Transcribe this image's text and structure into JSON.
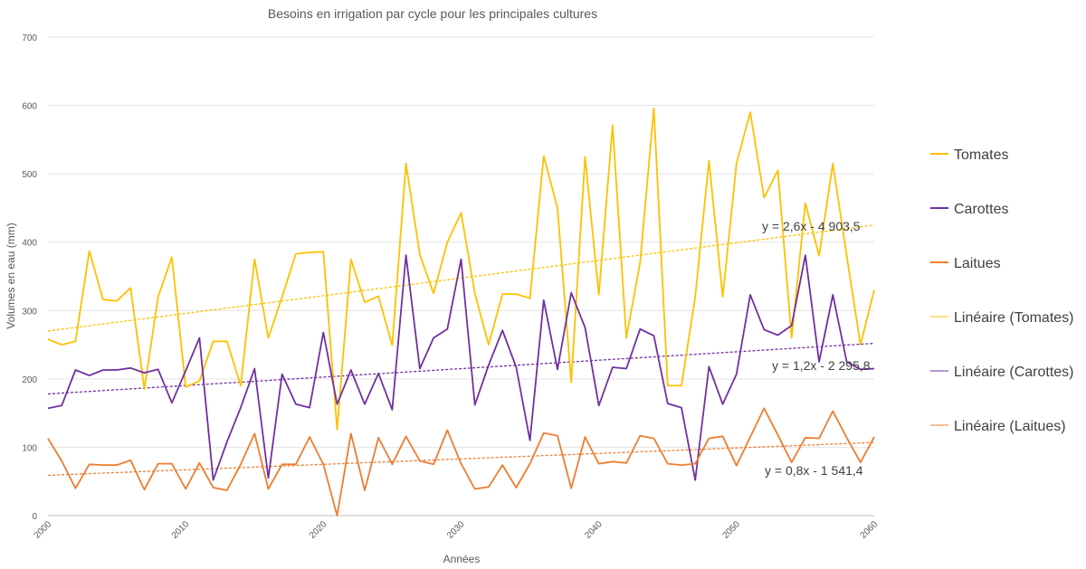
{
  "chart_data": {
    "type": "line",
    "title": "Besoins en irrigation par cycle pour les principales cultures",
    "xlabel": "Années",
    "ylabel": "Volumes en eau (mm)",
    "xlim": [
      2000,
      2060
    ],
    "ylim": [
      0,
      700
    ],
    "yticks": [
      "0",
      "100",
      "200",
      "300",
      "400",
      "500",
      "600",
      "700"
    ],
    "xticks": [
      "2000",
      "2010",
      "2020",
      "2030",
      "2040",
      "2050",
      "2060"
    ],
    "grid": "horizontal",
    "legend_position": "right",
    "x": [
      2000,
      2001,
      2002,
      2003,
      2004,
      2005,
      2006,
      2007,
      2008,
      2009,
      2010,
      2011,
      2012,
      2013,
      2014,
      2015,
      2016,
      2017,
      2018,
      2019,
      2020,
      2021,
      2022,
      2023,
      2024,
      2025,
      2026,
      2027,
      2028,
      2029,
      2030,
      2031,
      2032,
      2033,
      2034,
      2035,
      2036,
      2037,
      2038,
      2039,
      2040,
      2041,
      2042,
      2043,
      2044,
      2045,
      2046,
      2047,
      2048,
      2049,
      2050,
      2051,
      2052,
      2053,
      2054,
      2055,
      2056,
      2057,
      2058,
      2059,
      2060
    ],
    "series": [
      {
        "name": "Tomates",
        "color": "#FFC000",
        "values": [
          258,
          250,
          255,
          387,
          316,
          314,
          333,
          185,
          320,
          378,
          188,
          197,
          255,
          255,
          190,
          375,
          260,
          320,
          383,
          385,
          386,
          126,
          375,
          312,
          321,
          249,
          515,
          382,
          325,
          400,
          443,
          325,
          250,
          324,
          324,
          318,
          526,
          450,
          195,
          525,
          323,
          571,
          260,
          370,
          596,
          190,
          190,
          320,
          519,
          320,
          515,
          590,
          465,
          505,
          260,
          457,
          380,
          515,
          380,
          250,
          330
        ]
      },
      {
        "name": "Carottes",
        "color": "#7030A0",
        "values": [
          157,
          161,
          213,
          205,
          213,
          213,
          216,
          209,
          214,
          165,
          212,
          260,
          52,
          108,
          158,
          215,
          55,
          207,
          163,
          158,
          268,
          163,
          213,
          163,
          208,
          155,
          381,
          215,
          260,
          273,
          375,
          162,
          220,
          271,
          217,
          110,
          315,
          214,
          326,
          275,
          161,
          217,
          215,
          273,
          263,
          164,
          158,
          52,
          218,
          163,
          207,
          323,
          272,
          264,
          278,
          381,
          225,
          323,
          225,
          214,
          215
        ]
      },
      {
        "name": "Laitues",
        "color": "#ED7D31",
        "values": [
          113,
          80,
          40,
          75,
          74,
          74,
          81,
          38,
          76,
          76,
          39,
          77,
          41,
          37,
          75,
          120,
          39,
          75,
          75,
          115,
          75,
          0,
          120,
          37,
          114,
          75,
          116,
          80,
          75,
          125,
          76,
          39,
          42,
          74,
          41,
          76,
          121,
          117,
          40,
          115,
          76,
          79,
          77,
          117,
          113,
          76,
          74,
          76,
          113,
          116,
          73,
          115,
          157,
          118,
          78,
          114,
          113,
          153,
          114,
          78,
          115
        ]
      }
    ],
    "trendlines": [
      {
        "name": "Linéaire (Tomates)",
        "color": "#FFC000",
        "x": [
          2000,
          2060
        ],
        "y": [
          270,
          425
        ],
        "equation": "y = 2,6x - 4 903,5"
      },
      {
        "name": "Linéaire (Carottes)",
        "color": "#7030A0",
        "x": [
          2000,
          2060
        ],
        "y": [
          178,
          252
        ],
        "equation": "y = 1,2x - 2 295,8"
      },
      {
        "name": "Linéaire (Laitues)",
        "color": "#ED7D31",
        "x": [
          2000,
          2060
        ],
        "y": [
          59,
          107
        ],
        "equation": "y = 0,8x - 1 541,4"
      }
    ]
  }
}
